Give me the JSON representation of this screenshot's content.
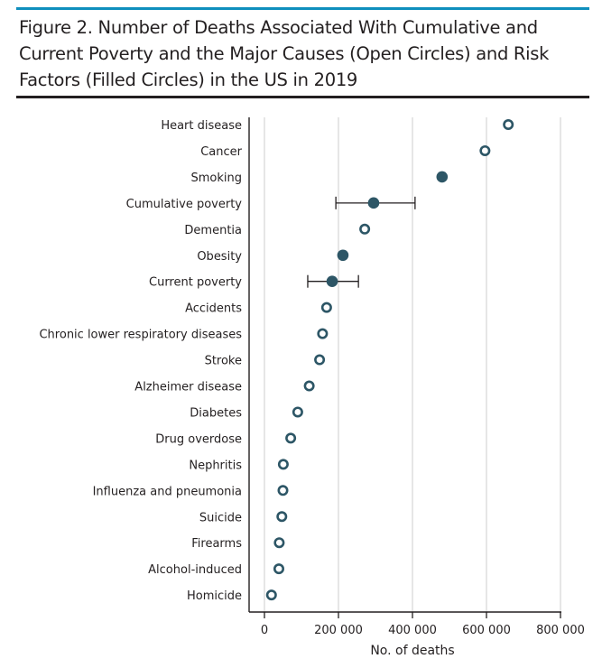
{
  "figure": {
    "title": "Figure 2. Number of Deaths Associated With Cumulative and Current Poverty and the Major Causes (Open Circles) and Risk Factors (Filled Circles) in the US in 2019"
  },
  "colors": {
    "accent_rule": "#0f8fbd",
    "marker": "#2d5666",
    "gridline": "#d9d9d9",
    "axis": "#231f20",
    "error_bar": "#231f20"
  },
  "chart_data": {
    "type": "scatter",
    "title": "Number of Deaths Associated With Cumulative and Current Poverty and the Major Causes (Open Circles) and Risk Factors (Filled Circles) in the US in 2019",
    "xlabel": "No. of deaths",
    "ylabel": "",
    "xlim": [
      0,
      800000
    ],
    "x_ticks": [
      0,
      200000,
      400000,
      600000,
      800000
    ],
    "x_tick_labels": [
      "0",
      "200 000",
      "400 000",
      "600 000",
      "800 000"
    ],
    "grid": "vertical",
    "legend": "none (marker style encoded in title: open circles = major causes, filled circles = risk factors)",
    "points": [
      {
        "label": "Heart disease",
        "value": 659000,
        "kind": "cause"
      },
      {
        "label": "Cancer",
        "value": 596000,
        "kind": "cause"
      },
      {
        "label": "Smoking",
        "value": 480000,
        "kind": "risk"
      },
      {
        "label": "Cumulative poverty",
        "value": 295000,
        "kind": "risk",
        "ci": [
          193000,
          407000
        ]
      },
      {
        "label": "Dementia",
        "value": 271000,
        "kind": "cause"
      },
      {
        "label": "Obesity",
        "value": 212000,
        "kind": "risk"
      },
      {
        "label": "Current poverty",
        "value": 183000,
        "kind": "risk",
        "ci": [
          117000,
          254000
        ]
      },
      {
        "label": "Accidents",
        "value": 168000,
        "kind": "cause"
      },
      {
        "label": "Chronic lower respiratory diseases",
        "value": 157000,
        "kind": "cause"
      },
      {
        "label": "Stroke",
        "value": 149000,
        "kind": "cause"
      },
      {
        "label": "Alzheimer disease",
        "value": 121000,
        "kind": "cause"
      },
      {
        "label": "Diabetes",
        "value": 90000,
        "kind": "cause"
      },
      {
        "label": "Drug overdose",
        "value": 71000,
        "kind": "cause"
      },
      {
        "label": "Nephritis",
        "value": 51000,
        "kind": "cause"
      },
      {
        "label": "Influenza and pneumonia",
        "value": 50000,
        "kind": "cause"
      },
      {
        "label": "Suicide",
        "value": 47000,
        "kind": "cause"
      },
      {
        "label": "Firearms",
        "value": 40000,
        "kind": "cause"
      },
      {
        "label": "Alcohol-induced",
        "value": 39000,
        "kind": "cause"
      },
      {
        "label": "Homicide",
        "value": 19000,
        "kind": "cause"
      }
    ]
  }
}
